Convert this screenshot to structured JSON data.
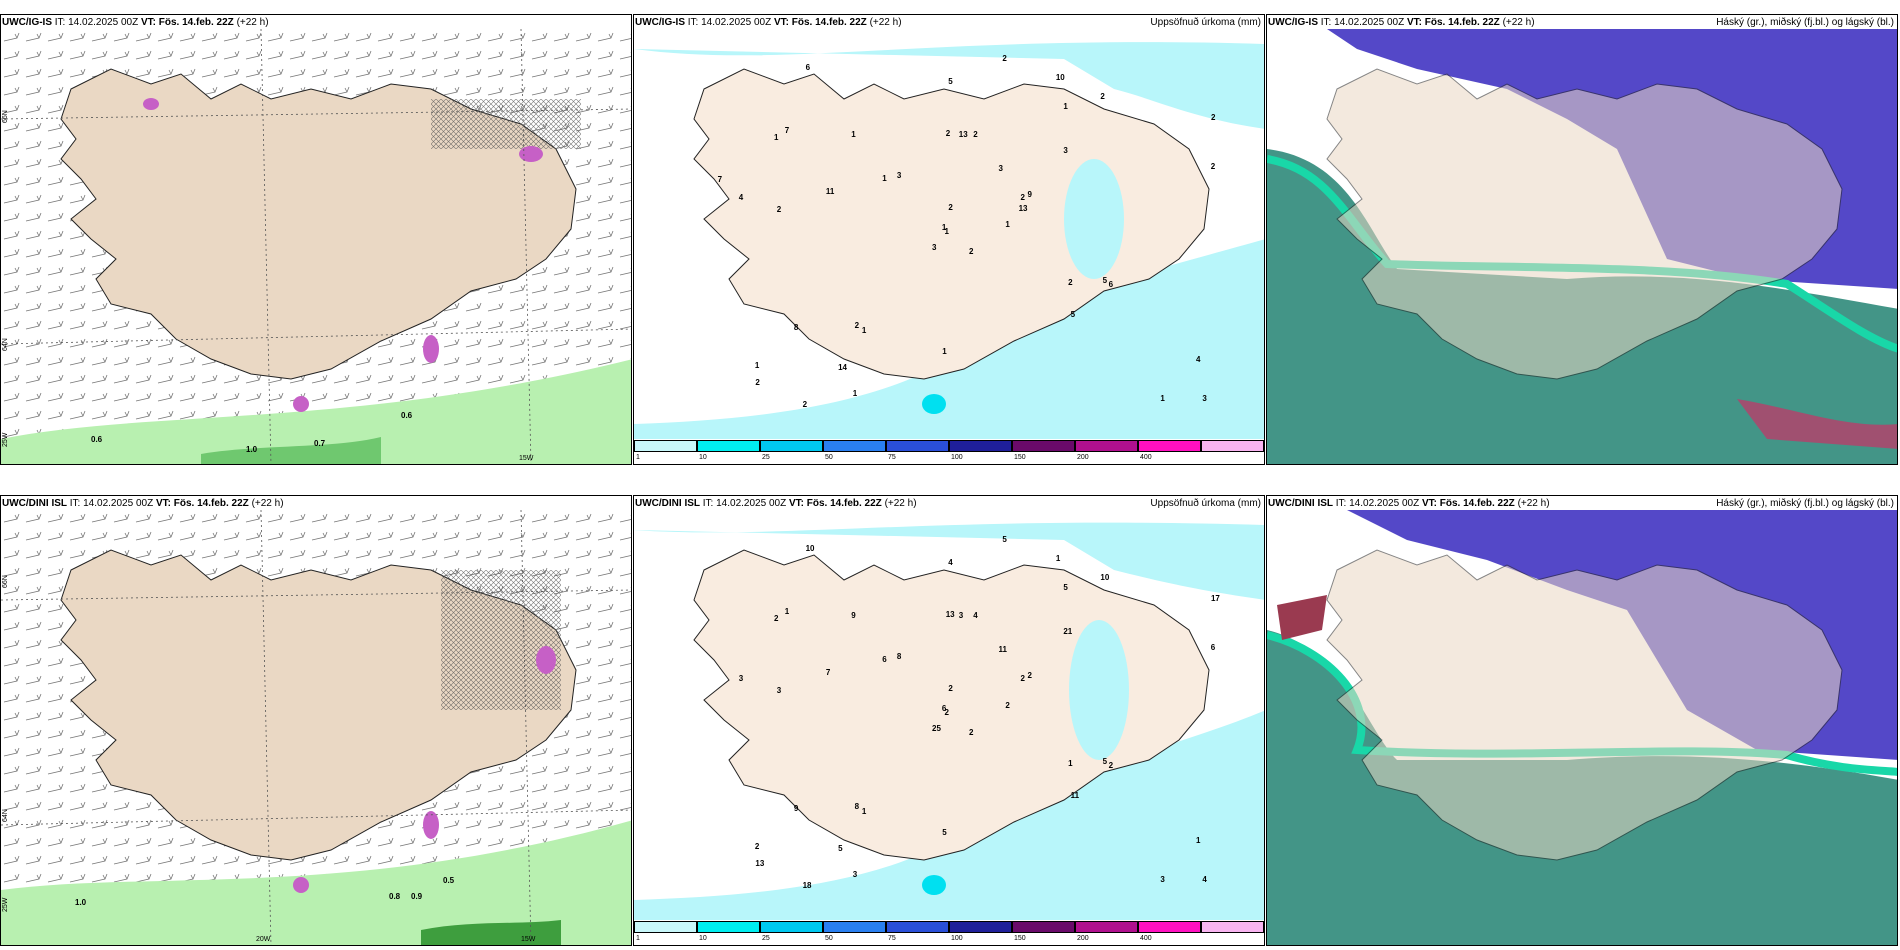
{
  "panels": {
    "p1": {
      "model": "UWC/IG-IS",
      "it_label": "IT:",
      "it": "14.02.2025 00Z",
      "vt_label": "VT:",
      "vt": "Fös. 14.feb. 22Z",
      "lead": "(+22 h)",
      "right_title": ""
    },
    "p2": {
      "model": "UWC/IG-IS",
      "it_label": "IT:",
      "it": "14.02.2025 00Z",
      "vt_label": "VT:",
      "vt": "Fös. 14.feb. 22Z",
      "lead": "(+22 h)",
      "right_title": "Uppsöfnuð úrkoma (mm)"
    },
    "p3": {
      "model": "UWC/IG-IS",
      "it_label": "IT:",
      "it": "14.02.2025 00Z",
      "vt_label": "VT:",
      "vt": "Fös. 14.feb. 22Z",
      "lead": "(+22 h)",
      "right_title": "Háský (gr.), miðský (fj.bl.) og lágský (bl.)"
    },
    "p4": {
      "model": "UWC/DINI ISL",
      "it_label": "IT:",
      "it": "14.02.2025 00Z",
      "vt_label": "VT:",
      "vt": "Fös. 14.feb. 22Z",
      "lead": "(+22 h)",
      "right_title": ""
    },
    "p5": {
      "model": "UWC/DINI ISL",
      "it_label": "IT:",
      "it": "14.02.2025 00Z",
      "vt_label": "VT:",
      "vt": "Fös. 14.feb. 22Z",
      "lead": "(+22 h)",
      "right_title": "Uppsöfnuð úrkoma (mm)"
    },
    "p6": {
      "model": "UWC/DINI ISL",
      "it_label": "IT:",
      "it": "14.02.2025 00Z",
      "vt_label": "VT:",
      "vt": "Fös. 14.feb. 22Z",
      "lead": "(+22 h)",
      "right_title": "Háský (gr.), miðský (fj.bl.) og lágský (bl.)"
    }
  },
  "coords": {
    "lat66": "66N",
    "lat64": "64N",
    "lon25": "25W",
    "lon20": "20W",
    "lon15": "15W"
  },
  "wind_labels_top": [
    "0.6",
    "1.0",
    "0.7",
    "0.6"
  ],
  "wind_labels_bottom": [
    "1.0",
    "0.8",
    "0.9",
    "0.5"
  ],
  "precip_legend": {
    "ticks": [
      "1",
      "10",
      "25",
      "50",
      "75",
      "100",
      "150",
      "200",
      "400"
    ],
    "colors": [
      "#c8f7fa",
      "#00eef0",
      "#00c8f0",
      "#2a7ff0",
      "#2a4fd8",
      "#1f1f9a",
      "#6a0a6a",
      "#b0108e",
      "#ff10c0",
      "#f8b4f0"
    ]
  },
  "precip_values_top": [
    "2",
    "1",
    "1",
    "1",
    "2",
    "1",
    "10",
    "2",
    "1",
    "1",
    "6",
    "3",
    "2",
    "2",
    "3",
    "3",
    "2",
    "2",
    "3",
    "8",
    "3",
    "2",
    "14",
    "13",
    "9",
    "6",
    "7",
    "5",
    "4",
    "2",
    "2",
    "1",
    "1",
    "2",
    "1",
    "2",
    "2",
    "1",
    "4",
    "5",
    "2",
    "1",
    "11",
    "5",
    "1",
    "7",
    "13"
  ],
  "precip_values_bottom": [
    "2",
    "2",
    "2",
    "2",
    "2",
    "1",
    "1",
    "4",
    "5",
    "2",
    "10",
    "4",
    "3",
    "17",
    "25",
    "21",
    "18",
    "13",
    "11",
    "9",
    "8",
    "13",
    "5",
    "3",
    "2",
    "2",
    "1",
    "4",
    "3",
    "1",
    "6",
    "6",
    "5",
    "2",
    "9",
    "10",
    "8",
    "3",
    "1",
    "5",
    "5",
    "6",
    "7",
    "11",
    "3"
  ],
  "colors": {
    "land": "#ead8c4",
    "land2": "#f9ece0",
    "sea": "#ffffff",
    "precip": "#b8f6fa",
    "wind_green": "#b8f0b0",
    "cloud_high": "#5448c8",
    "cloud_mid": "#2f8a7a",
    "cloud_low": "#19d7a8"
  }
}
